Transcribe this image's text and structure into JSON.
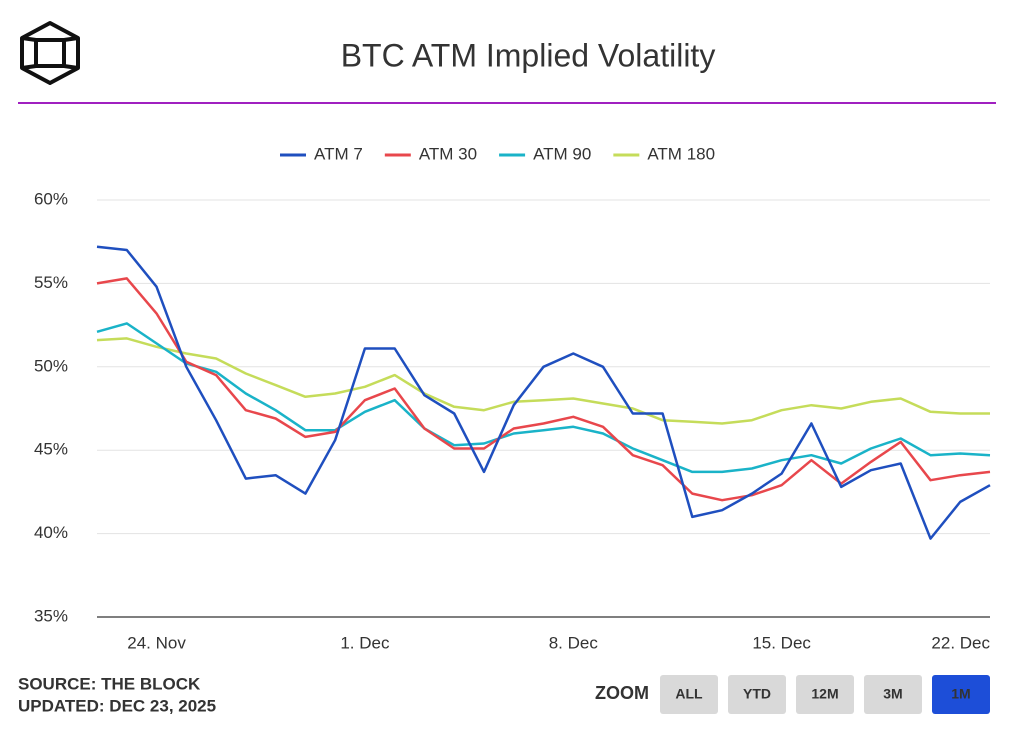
{
  "chart_data": {
    "type": "line",
    "title": "BTC ATM Implied Volatility",
    "categories": [
      null,
      null,
      "24. Nov",
      null,
      null,
      null,
      null,
      null,
      null,
      "1. Dec",
      null,
      null,
      null,
      null,
      null,
      null,
      "8. Dec",
      null,
      null,
      null,
      null,
      null,
      null,
      "15. Dec",
      null,
      null,
      null,
      null,
      null,
      null,
      "22. Dec"
    ],
    "series": [
      {
        "name": "ATM 7",
        "color": "#1f4fbf",
        "values": [
          57.2,
          57.0,
          54.8,
          50.0,
          46.8,
          43.3,
          43.5,
          42.4,
          45.6,
          51.1,
          51.1,
          48.3,
          47.2,
          43.7,
          47.7,
          50.0,
          50.8,
          50.0,
          47.2,
          47.2,
          41.0,
          41.4,
          42.4,
          43.6,
          46.6,
          42.8,
          43.8,
          44.2,
          39.7,
          41.9,
          42.9
        ]
      },
      {
        "name": "ATM 30",
        "color": "#e8474c",
        "values": [
          55.0,
          55.3,
          53.2,
          50.3,
          49.5,
          47.4,
          46.9,
          45.8,
          46.1,
          48.0,
          48.7,
          46.3,
          45.1,
          45.1,
          46.3,
          46.6,
          47.0,
          46.4,
          44.7,
          44.1,
          42.4,
          42.0,
          42.3,
          42.9,
          44.4,
          43.0,
          44.3,
          45.5,
          43.2,
          43.5,
          43.7
        ]
      },
      {
        "name": "ATM 90",
        "color": "#1ab3c8",
        "values": [
          52.1,
          52.6,
          51.4,
          50.2,
          49.7,
          48.4,
          47.4,
          46.2,
          46.2,
          47.3,
          48.0,
          46.3,
          45.3,
          45.4,
          46.0,
          46.2,
          46.4,
          46.0,
          45.1,
          44.4,
          43.7,
          43.7,
          43.9,
          44.4,
          44.7,
          44.2,
          45.1,
          45.7,
          44.7,
          44.8,
          44.7
        ]
      },
      {
        "name": "ATM 180",
        "color": "#c5dc5a",
        "values": [
          51.6,
          51.7,
          51.2,
          50.8,
          50.5,
          49.6,
          48.9,
          48.2,
          48.4,
          48.8,
          49.5,
          48.4,
          47.6,
          47.4,
          47.9,
          48.0,
          48.1,
          47.8,
          47.5,
          46.8,
          46.7,
          46.6,
          46.8,
          47.4,
          47.7,
          47.5,
          47.9,
          48.1,
          47.3,
          47.2,
          47.2
        ]
      }
    ],
    "ylim": [
      35,
      60
    ],
    "yticks": [
      {
        "value": 35,
        "label": "35%"
      },
      {
        "value": 40,
        "label": "40%"
      },
      {
        "value": 45,
        "label": "45%"
      },
      {
        "value": 50,
        "label": "50%"
      },
      {
        "value": 55,
        "label": "55%"
      },
      {
        "value": 60,
        "label": "60%"
      }
    ],
    "grid": true,
    "legend": "top"
  },
  "footer": {
    "source": "SOURCE: THE BLOCK",
    "updated": "UPDATED: DEC 23, 2025"
  },
  "zoom": {
    "label": "ZOOM",
    "buttons": [
      "ALL",
      "YTD",
      "12M",
      "3M",
      "1M"
    ],
    "active": "1M"
  }
}
